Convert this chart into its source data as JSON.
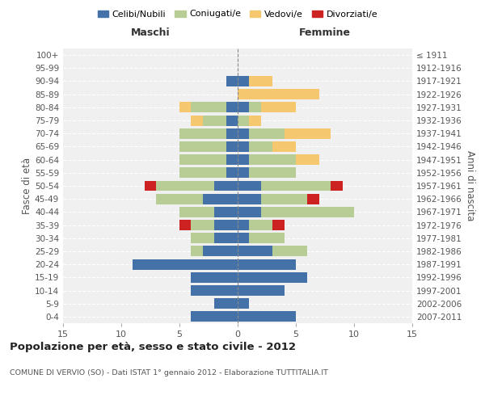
{
  "age_groups": [
    "0-4",
    "5-9",
    "10-14",
    "15-19",
    "20-24",
    "25-29",
    "30-34",
    "35-39",
    "40-44",
    "45-49",
    "50-54",
    "55-59",
    "60-64",
    "65-69",
    "70-74",
    "75-79",
    "80-84",
    "85-89",
    "90-94",
    "95-99",
    "100+"
  ],
  "birth_years": [
    "2007-2011",
    "2002-2006",
    "1997-2001",
    "1992-1996",
    "1987-1991",
    "1982-1986",
    "1977-1981",
    "1972-1976",
    "1967-1971",
    "1962-1966",
    "1957-1961",
    "1952-1956",
    "1947-1951",
    "1942-1946",
    "1937-1941",
    "1932-1936",
    "1927-1931",
    "1922-1926",
    "1917-1921",
    "1912-1916",
    "≤ 1911"
  ],
  "male": {
    "celibi": [
      4,
      2,
      4,
      4,
      9,
      3,
      2,
      2,
      2,
      3,
      2,
      1,
      1,
      1,
      1,
      1,
      1,
      0,
      1,
      0,
      0
    ],
    "coniugati": [
      0,
      0,
      0,
      0,
      0,
      1,
      2,
      2,
      3,
      4,
      5,
      4,
      4,
      4,
      4,
      2,
      3,
      0,
      0,
      0,
      0
    ],
    "vedovi": [
      0,
      0,
      0,
      0,
      0,
      0,
      0,
      0,
      0,
      0,
      0,
      0,
      0,
      0,
      0,
      1,
      1,
      0,
      0,
      0,
      0
    ],
    "divorziati": [
      0,
      0,
      0,
      0,
      0,
      0,
      0,
      1,
      0,
      0,
      1,
      0,
      0,
      0,
      0,
      0,
      0,
      0,
      0,
      0,
      0
    ]
  },
  "female": {
    "nubili": [
      5,
      1,
      4,
      6,
      5,
      3,
      1,
      1,
      2,
      2,
      2,
      1,
      1,
      1,
      1,
      0,
      1,
      0,
      1,
      0,
      0
    ],
    "coniugate": [
      0,
      0,
      0,
      0,
      0,
      3,
      3,
      2,
      8,
      4,
      6,
      4,
      4,
      2,
      3,
      1,
      1,
      0,
      0,
      0,
      0
    ],
    "vedove": [
      0,
      0,
      0,
      0,
      0,
      0,
      0,
      0,
      0,
      0,
      0,
      0,
      2,
      2,
      4,
      1,
      3,
      7,
      2,
      0,
      0
    ],
    "divorziate": [
      0,
      0,
      0,
      0,
      0,
      0,
      0,
      1,
      0,
      1,
      1,
      0,
      0,
      0,
      0,
      0,
      0,
      0,
      0,
      0,
      0
    ]
  },
  "colors": {
    "celibi_nubili": "#4472a8",
    "coniugati": "#b8cc96",
    "vedovi": "#f5c76e",
    "divorziati": "#cc2222"
  },
  "title": "Popolazione per età, sesso e stato civile - 2012",
  "subtitle": "COMUNE DI VERVIO (SO) - Dati ISTAT 1° gennaio 2012 - Elaborazione TUTTITALIA.IT",
  "ylabel_left": "Fasce di età",
  "ylabel_right": "Anni di nascita",
  "xlabel_male": "Maschi",
  "xlabel_female": "Femmine",
  "xlim": 15,
  "legend_labels": [
    "Celibi/Nubili",
    "Coniugati/e",
    "Vedovi/e",
    "Divorziati/e"
  ],
  "bg_color": "#f0f0f0"
}
